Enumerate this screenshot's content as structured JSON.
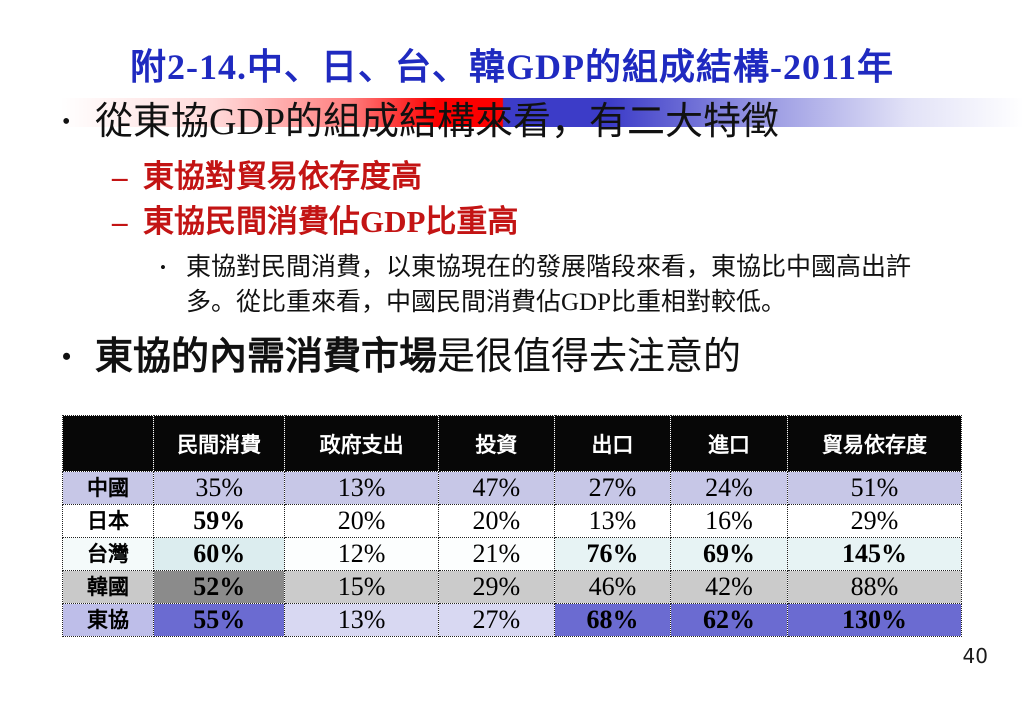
{
  "page": {
    "number": "40",
    "background": "#ffffff"
  },
  "title": {
    "text": "附2-14.中、日、台、韓GDP的組成結構-2011年",
    "color": "#1f2ac0"
  },
  "banner": {
    "description": "horizontal gradient bar behind first bullet",
    "red": "#fb0000",
    "blue": "#3c3cc8"
  },
  "bullets": {
    "b1": {
      "marker": "•",
      "text": "從東協GDP的組成結構來看，有二大特徵"
    },
    "b1a": {
      "marker": "–",
      "text": "東協對貿易依存度高",
      "color": "#c31414"
    },
    "b1b": {
      "marker": "–",
      "text": "東協民間消費佔GDP比重高",
      "color": "#c31414"
    },
    "b1b1": {
      "marker": "•",
      "line1": "東協對民間消費，以東協現在的發展階段來看，東協比中國高出許",
      "line2": "多。從比重來看，中國民間消費佔GDP比重相對較低。"
    },
    "b2": {
      "marker": "•",
      "bold_text": "東協的內需消費市場",
      "text": "是很值得去注意的"
    }
  },
  "table": {
    "col_widths": [
      "10.1%",
      "14.6%",
      "17.1%",
      "12.9%",
      "12.9%",
      "13.0%",
      "19.4%"
    ],
    "headers": [
      "",
      "民間消費",
      "政府支出",
      "投資",
      "出口",
      "進口",
      "貿易依存度"
    ],
    "header_bg": "#070707",
    "header_color": "#ffffff",
    "rows": [
      {
        "cells": [
          {
            "v": "中國",
            "bg": "#c7c7e7",
            "b": true
          },
          {
            "v": "35%",
            "bg": "#c7c7e7",
            "b": false
          },
          {
            "v": "13%",
            "bg": "#c7c7e7",
            "b": false
          },
          {
            "v": "47%",
            "bg": "#c7c7e7",
            "b": false
          },
          {
            "v": "27%",
            "bg": "#c7c7e7",
            "b": false
          },
          {
            "v": "24%",
            "bg": "#c7c7e7",
            "b": false
          },
          {
            "v": "51%",
            "bg": "#c7c7e7",
            "b": false
          }
        ]
      },
      {
        "cells": [
          {
            "v": "日本",
            "bg": "#ffffff",
            "b": true
          },
          {
            "v": "59%",
            "bg": "#ffffff",
            "b": true
          },
          {
            "v": "20%",
            "bg": "#ffffff",
            "b": false
          },
          {
            "v": "20%",
            "bg": "#ffffff",
            "b": false
          },
          {
            "v": "13%",
            "bg": "#ffffff",
            "b": false
          },
          {
            "v": "16%",
            "bg": "#ffffff",
            "b": false
          },
          {
            "v": "29%",
            "bg": "#ffffff",
            "b": false
          }
        ]
      },
      {
        "cells": [
          {
            "v": "台灣",
            "bg": "#f4fafa",
            "b": true
          },
          {
            "v": "60%",
            "bg": "#dcedef",
            "b": true
          },
          {
            "v": "12%",
            "bg": "#fcfefe",
            "b": false
          },
          {
            "v": "21%",
            "bg": "#fcfefe",
            "b": false
          },
          {
            "v": "76%",
            "bg": "#e7f3f4",
            "b": true
          },
          {
            "v": "69%",
            "bg": "#e7f3f4",
            "b": true
          },
          {
            "v": "145%",
            "bg": "#e7f3f4",
            "b": true
          }
        ]
      },
      {
        "cells": [
          {
            "v": "韓國",
            "bg": "#c9c9c9",
            "b": true
          },
          {
            "v": "52%",
            "bg": "#8b8b8b",
            "b": true
          },
          {
            "v": "15%",
            "bg": "#cbcbcb",
            "b": false
          },
          {
            "v": "29%",
            "bg": "#cbcbcb",
            "b": false
          },
          {
            "v": "46%",
            "bg": "#cbcbcb",
            "b": false
          },
          {
            "v": "42%",
            "bg": "#cbcbcb",
            "b": false
          },
          {
            "v": "88%",
            "bg": "#cbcbcb",
            "b": false
          }
        ]
      },
      {
        "cells": [
          {
            "v": "東協",
            "bg": "#bebee9",
            "b": true
          },
          {
            "v": "55%",
            "bg": "#6b6bd1",
            "b": true
          },
          {
            "v": "13%",
            "bg": "#d8d8f2",
            "b": false
          },
          {
            "v": "27%",
            "bg": "#d8d8f2",
            "b": false
          },
          {
            "v": "68%",
            "bg": "#6b6bd1",
            "b": true
          },
          {
            "v": "62%",
            "bg": "#6b6bd1",
            "b": true
          },
          {
            "v": "130%",
            "bg": "#6b6bd1",
            "b": true
          }
        ]
      }
    ]
  }
}
